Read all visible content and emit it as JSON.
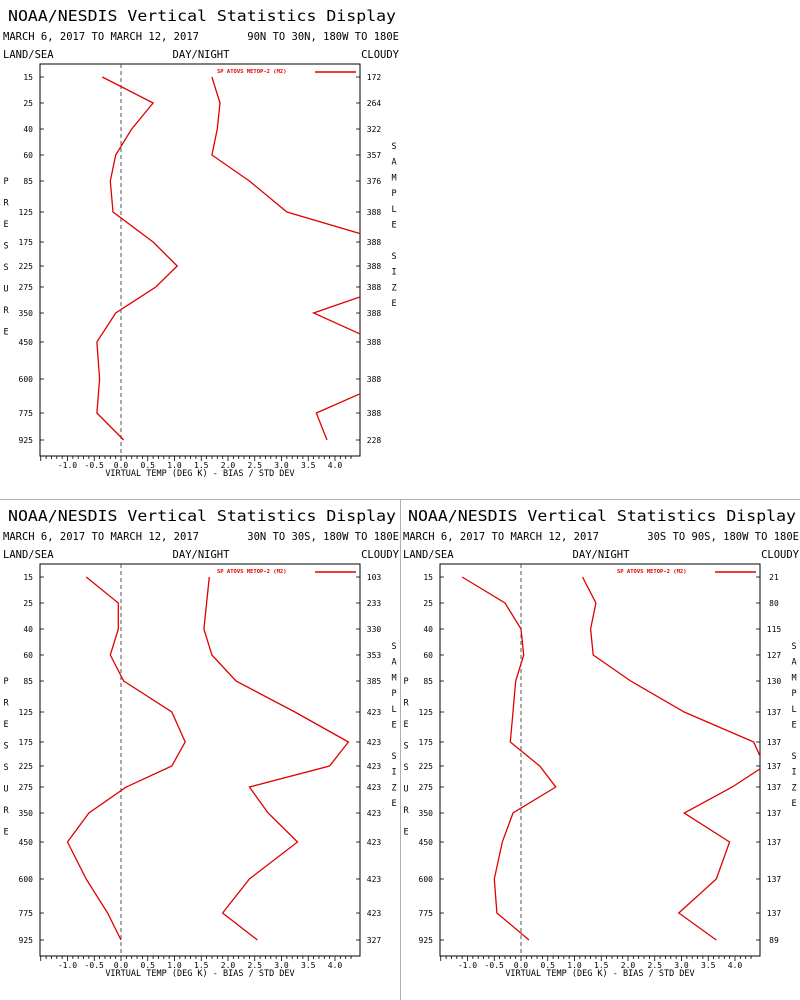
{
  "chart_data": [
    {
      "type": "line",
      "title": "NOAA/NESDIS Vertical Statistics Display",
      "date_range": "MARCH 6, 2017 TO MARCH 12, 2017",
      "region": "90N TO 30N, 180W TO 180E",
      "header_left": "LAND/SEA",
      "header_mid": "DAY/NIGHT",
      "header_right": "CLOUDY",
      "xlabel": "VIRTUAL TEMP (DEG K) - BIAS / STD DEV",
      "ylabel": "PRESSURE",
      "y2label": "SAMPLE SIZE",
      "xlim": [
        -1.5,
        4.3
      ],
      "x_ticks": [
        "-1.0",
        "-0.5",
        "0.0",
        "0.5",
        "1.0",
        "1.5",
        "2.0",
        "2.5",
        "3.0",
        "3.5",
        "4.0"
      ],
      "levels": [
        "15",
        "25",
        "40",
        "60",
        "85",
        "125",
        "175",
        "225",
        "275",
        "350",
        "450",
        "600",
        "775",
        "925"
      ],
      "sample_sizes": [
        "172",
        "264",
        "322",
        "357",
        "376",
        "388",
        "388",
        "388",
        "388",
        "388",
        "388",
        "388",
        "388",
        "228"
      ],
      "legend": "SP ATOVS METOP-2 (M2)",
      "series": [
        {
          "name": "bias",
          "values": [
            -0.35,
            0.6,
            0.2,
            -0.1,
            -0.2,
            -0.15,
            0.6,
            1.05,
            0.65,
            -0.1,
            -0.45,
            -0.4,
            -0.45,
            0.05
          ]
        },
        {
          "name": "std_dev",
          "values": [
            1.7,
            1.85,
            1.8,
            1.7,
            2.4,
            3.1,
            5.0,
            5.2,
            5.0,
            3.6,
            4.8,
            5.1,
            3.65,
            3.85
          ]
        }
      ]
    },
    {
      "type": "line",
      "title": "NOAA/NESDIS Vertical Statistics Display",
      "date_range": "MARCH 6, 2017 TO MARCH 12, 2017",
      "region": "30N TO 30S, 180W TO 180E",
      "header_left": "LAND/SEA",
      "header_mid": "DAY/NIGHT",
      "header_right": "CLOUDY",
      "xlabel": "VIRTUAL TEMP (DEG K) - BIAS / STD DEV",
      "ylabel": "PRESSURE",
      "y2label": "SAMPLE SIZE",
      "xlim": [
        -1.5,
        4.3
      ],
      "x_ticks": [
        "-1.0",
        "-0.5",
        "0.0",
        "0.5",
        "1.0",
        "1.5",
        "2.0",
        "2.5",
        "3.0",
        "3.5",
        "4.0"
      ],
      "levels": [
        "15",
        "25",
        "40",
        "60",
        "85",
        "125",
        "175",
        "225",
        "275",
        "350",
        "450",
        "600",
        "775",
        "925"
      ],
      "sample_sizes": [
        "103",
        "233",
        "330",
        "353",
        "385",
        "423",
        "423",
        "423",
        "423",
        "423",
        "423",
        "423",
        "423",
        "327"
      ],
      "legend": "SP ATOVS METOP-2 (M2)",
      "series": [
        {
          "name": "bias",
          "values": [
            -0.65,
            -0.05,
            -0.05,
            -0.2,
            0.05,
            0.95,
            1.2,
            0.95,
            0.1,
            -0.6,
            -1.0,
            -0.65,
            -0.25,
            0.0
          ]
        },
        {
          "name": "std_dev",
          "values": [
            1.65,
            1.6,
            1.55,
            1.7,
            2.15,
            3.25,
            4.25,
            3.9,
            2.4,
            2.75,
            3.3,
            2.4,
            1.9,
            2.55
          ]
        }
      ]
    },
    {
      "type": "line",
      "title": "NOAA/NESDIS Vertical Statistics Display",
      "date_range": "MARCH 6, 2017 TO MARCH 12, 2017",
      "region": "30S TO 90S, 180W TO 180E",
      "header_left": "LAND/SEA",
      "header_mid": "DAY/NIGHT",
      "header_right": "CLOUDY",
      "xlabel": "VIRTUAL TEMP (DEG K) - BIAS / STD DEV",
      "ylabel": "PRESSURE",
      "y2label": "SAMPLE SIZE",
      "xlim": [
        -1.5,
        4.3
      ],
      "x_ticks": [
        "-1.0",
        "-0.5",
        "0.0",
        "0.5",
        "1.0",
        "1.5",
        "2.0",
        "2.5",
        "3.0",
        "3.5",
        "4.0"
      ],
      "levels": [
        "15",
        "25",
        "40",
        "60",
        "85",
        "125",
        "175",
        "225",
        "275",
        "350",
        "450",
        "600",
        "775",
        "925"
      ],
      "sample_sizes": [
        "21",
        "80",
        "115",
        "127",
        "130",
        "137",
        "137",
        "137",
        "137",
        "137",
        "137",
        "137",
        "137",
        "89"
      ],
      "legend": "SP ATOVS METOP-2 (M2)",
      "series": [
        {
          "name": "bias",
          "values": [
            -1.1,
            -0.3,
            0.0,
            0.05,
            -0.1,
            -0.15,
            -0.2,
            0.35,
            0.65,
            -0.15,
            -0.35,
            -0.5,
            -0.45,
            0.15
          ]
        },
        {
          "name": "std_dev",
          "values": [
            1.15,
            1.4,
            1.3,
            1.35,
            2.05,
            3.05,
            4.35,
            4.55,
            3.95,
            3.05,
            3.9,
            3.65,
            2.95,
            3.65
          ]
        }
      ]
    }
  ]
}
